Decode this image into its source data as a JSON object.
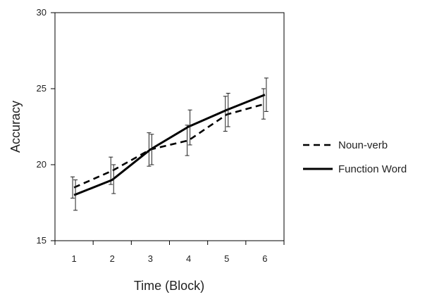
{
  "chart_data": {
    "type": "line",
    "title": "",
    "xlabel": "Time (Block)",
    "ylabel": "Accuracy",
    "x": [
      1,
      2,
      3,
      4,
      5,
      6
    ],
    "xlim": [
      0.5,
      6.5
    ],
    "ylim": [
      15,
      30
    ],
    "yticks": [
      15,
      20,
      25,
      30
    ],
    "grid": false,
    "legend_position": "right",
    "series": [
      {
        "name": "Noun-verb",
        "style": "dashed",
        "color": "#000000",
        "values": [
          18.5,
          19.6,
          21.0,
          21.6,
          23.3,
          24.0
        ],
        "err_low": [
          17.8,
          18.7,
          19.9,
          20.6,
          22.2,
          23.0
        ],
        "err_high": [
          19.2,
          20.5,
          22.1,
          22.6,
          24.5,
          25.0
        ]
      },
      {
        "name": "Function Word",
        "style": "solid",
        "color": "#000000",
        "values": [
          18.0,
          19.0,
          21.0,
          22.5,
          23.6,
          24.6
        ],
        "err_low": [
          17.0,
          18.1,
          20.0,
          21.3,
          22.5,
          23.5
        ],
        "err_high": [
          19.0,
          20.0,
          22.0,
          23.6,
          24.7,
          25.7
        ]
      }
    ]
  }
}
